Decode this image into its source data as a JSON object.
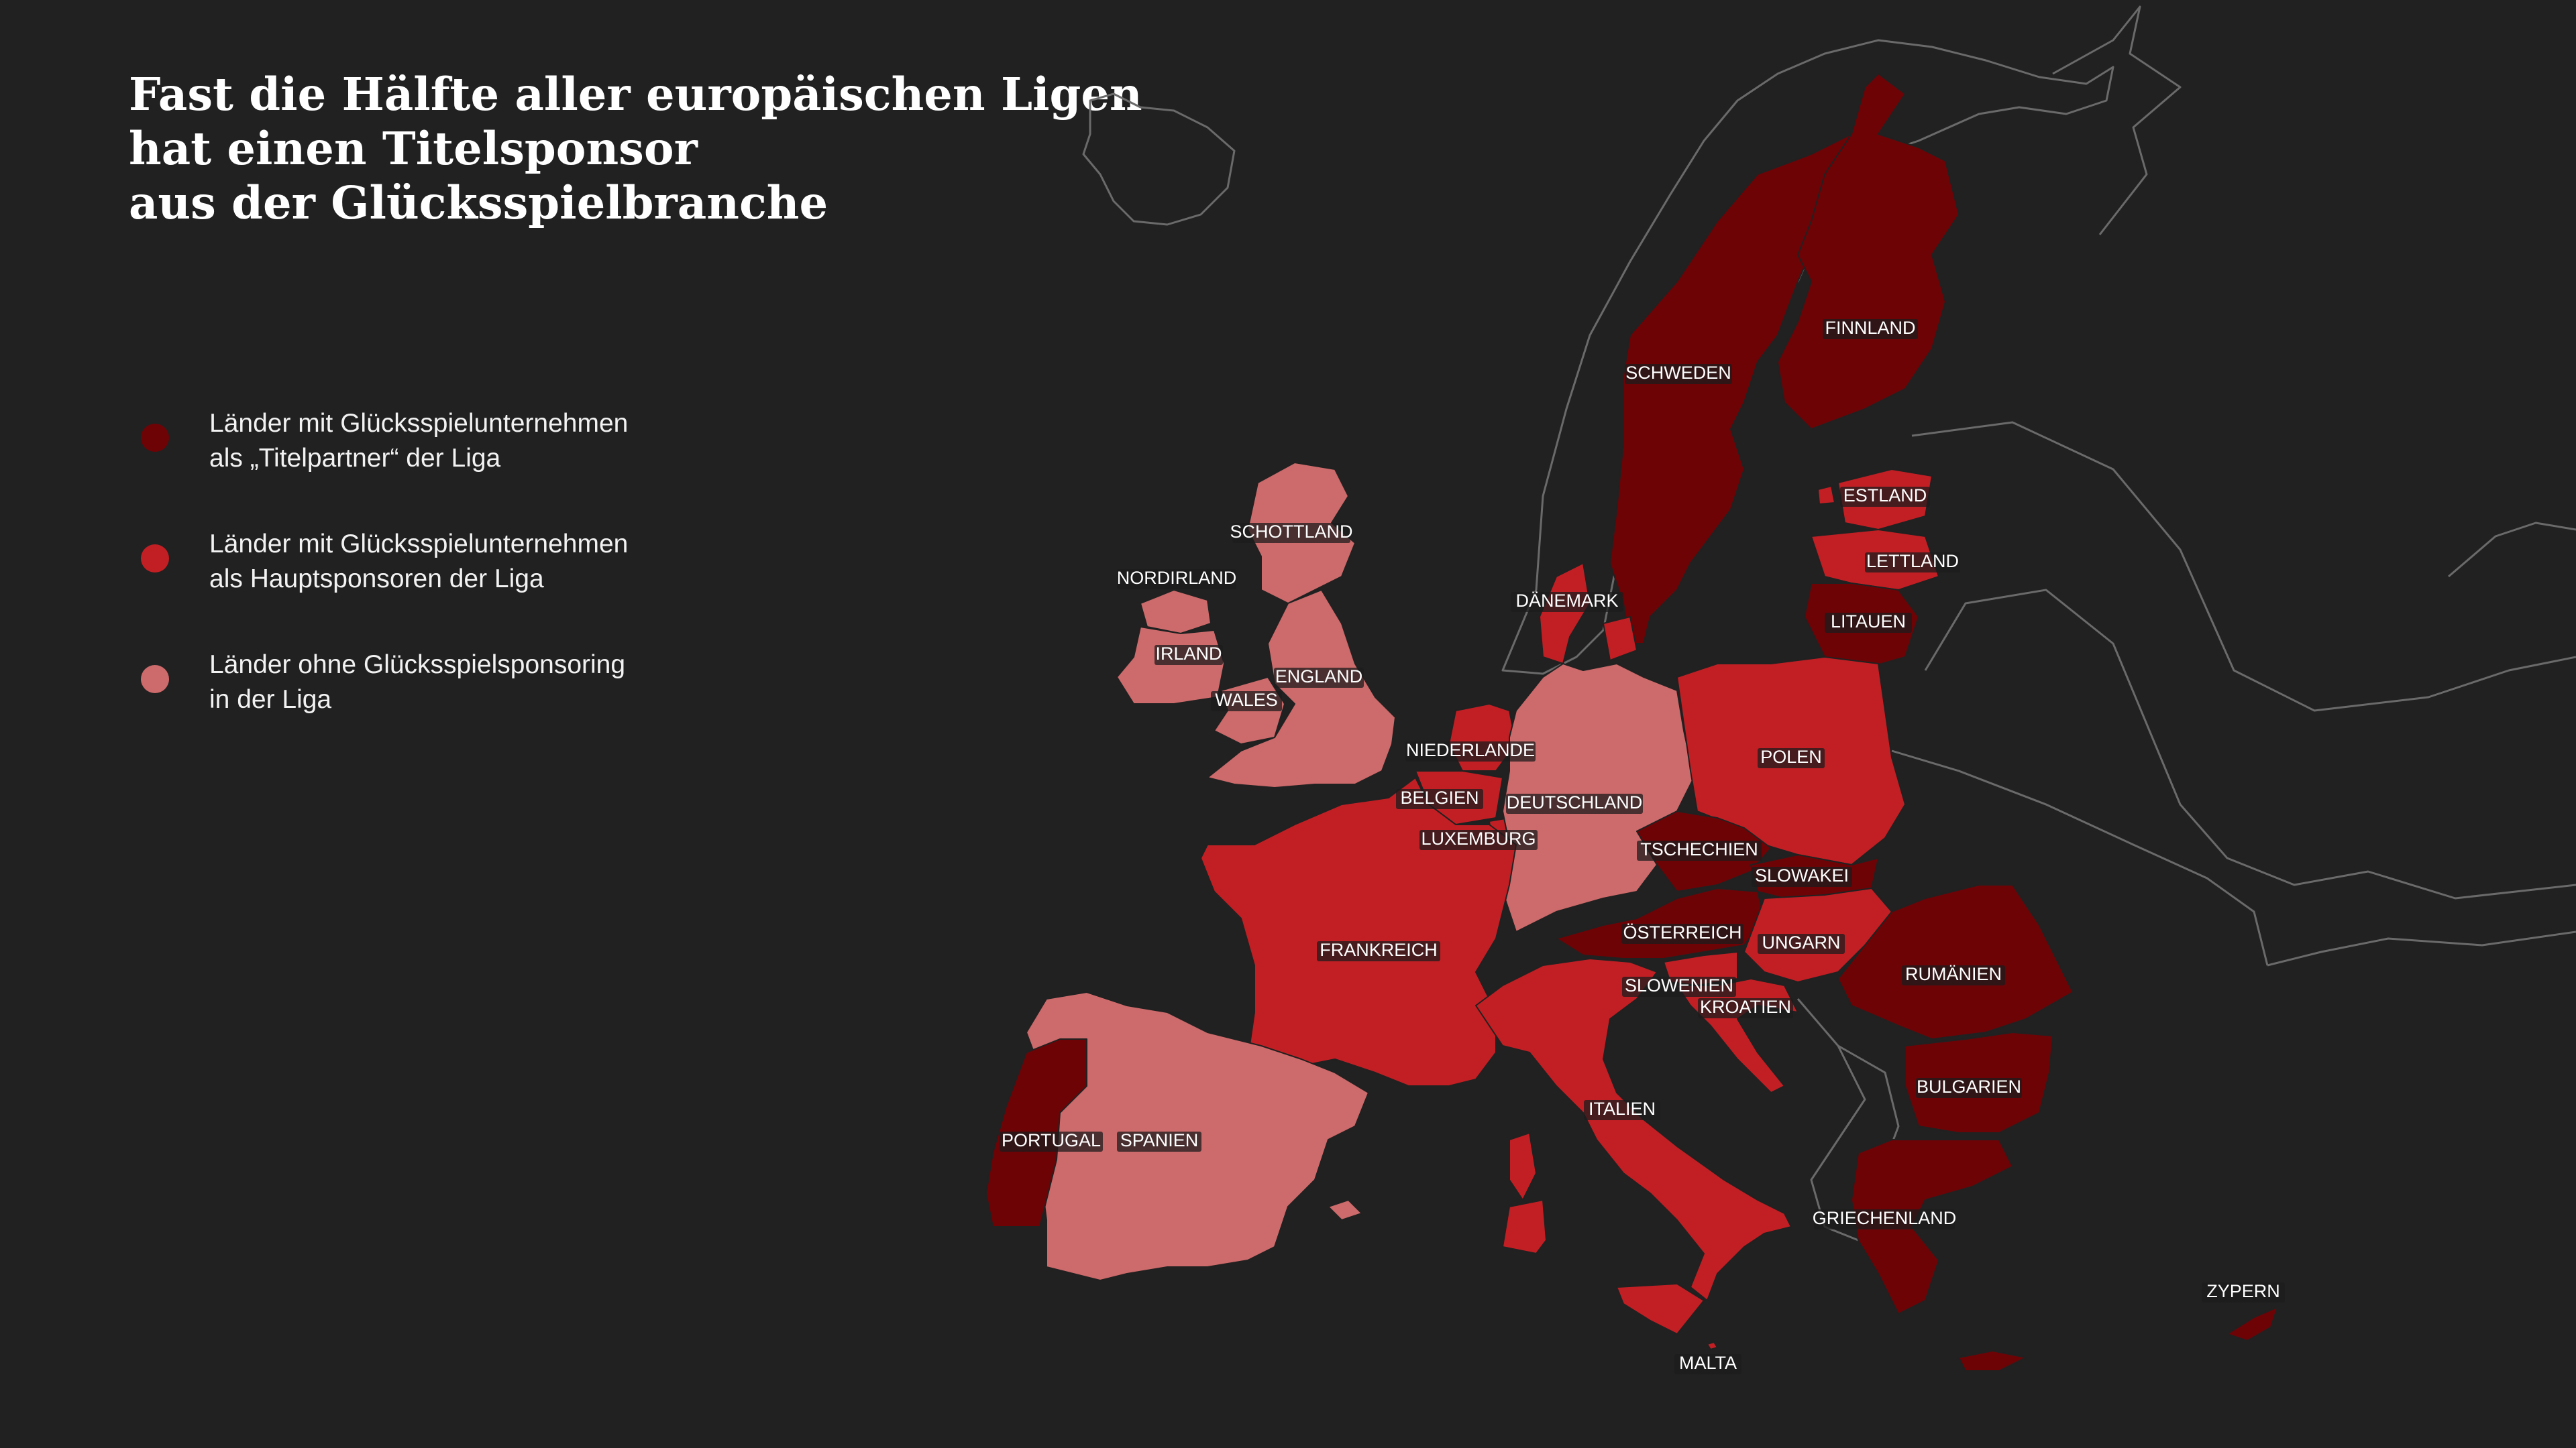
{
  "title": {
    "line1": "Fast die Hälfte aller europäischen Ligen",
    "line2": "hat einen Titelsponsor",
    "line3": "aus der Glücksspielbranche"
  },
  "legend": [
    {
      "category": "titelpartner",
      "color": "#6e0306",
      "line1": "Länder mit Glücksspielunternehmen",
      "line2": "als „Titelpartner“ der Liga"
    },
    {
      "category": "hauptsponsor",
      "color": "#c21f24",
      "line1": "Länder mit Glücksspielunternehmen",
      "line2": "als Hauptsponsoren der Liga"
    },
    {
      "category": "ohne",
      "color": "#cd6a6b",
      "line1": "Länder ohne Glücksspielsponsoring",
      "line2": "in der Liga"
    }
  ],
  "colors": {
    "background": "#212121",
    "titelpartner": "#6e0306",
    "hauptsponsor": "#c21f24",
    "ohne": "#cd6a6b",
    "outline": "#6a6a6a"
  },
  "countries": [
    {
      "id": "schottland",
      "label": "SCHOTTLAND",
      "category": "ohne"
    },
    {
      "id": "nordirland",
      "label": "NORDIRLAND",
      "category": "ohne"
    },
    {
      "id": "irland",
      "label": "IRLAND",
      "category": "ohne"
    },
    {
      "id": "england",
      "label": "ENGLAND",
      "category": "ohne"
    },
    {
      "id": "wales",
      "label": "WALES",
      "category": "ohne"
    },
    {
      "id": "schweden",
      "label": "SCHWEDEN",
      "category": "titelpartner"
    },
    {
      "id": "finnland",
      "label": "FINNLAND",
      "category": "titelpartner"
    },
    {
      "id": "estland",
      "label": "ESTLAND",
      "category": "hauptsponsor"
    },
    {
      "id": "lettland",
      "label": "LETTLAND",
      "category": "hauptsponsor"
    },
    {
      "id": "litauen",
      "label": "LITAUEN",
      "category": "titelpartner"
    },
    {
      "id": "daenemark",
      "label": "DÄNEMARK",
      "category": "hauptsponsor"
    },
    {
      "id": "niederlande",
      "label": "NIEDERLANDE",
      "category": "hauptsponsor"
    },
    {
      "id": "belgien",
      "label": "BELGIEN",
      "category": "hauptsponsor"
    },
    {
      "id": "luxemburg",
      "label": "LUXEMBURG",
      "category": "hauptsponsor"
    },
    {
      "id": "deutschland",
      "label": "DEUTSCHLAND",
      "category": "ohne"
    },
    {
      "id": "polen",
      "label": "POLEN",
      "category": "hauptsponsor"
    },
    {
      "id": "tschechien",
      "label": "TSCHECHIEN",
      "category": "titelpartner"
    },
    {
      "id": "slowakei",
      "label": "SLOWAKEI",
      "category": "titelpartner"
    },
    {
      "id": "oesterreich",
      "label": "ÖSTERREICH",
      "category": "titelpartner"
    },
    {
      "id": "ungarn",
      "label": "UNGARN",
      "category": "hauptsponsor"
    },
    {
      "id": "slowenien",
      "label": "SLOWENIEN",
      "category": "hauptsponsor"
    },
    {
      "id": "kroatien",
      "label": "KROATIEN",
      "category": "hauptsponsor"
    },
    {
      "id": "rumaenien",
      "label": "RUMÄNIEN",
      "category": "titelpartner"
    },
    {
      "id": "bulgarien",
      "label": "BULGARIEN",
      "category": "titelpartner"
    },
    {
      "id": "griechenland",
      "label": "GRIECHENLAND",
      "category": "titelpartner"
    },
    {
      "id": "frankreich",
      "label": "FRANKREICH",
      "category": "hauptsponsor"
    },
    {
      "id": "italien",
      "label": "ITALIEN",
      "category": "hauptsponsor"
    },
    {
      "id": "spanien",
      "label": "SPANIEN",
      "category": "ohne"
    },
    {
      "id": "portugal",
      "label": "PORTUGAL",
      "category": "titelpartner"
    },
    {
      "id": "malta",
      "label": "MALTA",
      "category": "hauptsponsor"
    },
    {
      "id": "zypern",
      "label": "ZYPERN",
      "category": "titelpartner"
    }
  ]
}
